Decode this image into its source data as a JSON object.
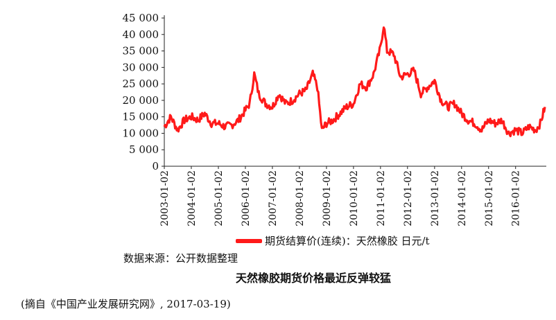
{
  "chart_data": {
    "type": "line",
    "title": "",
    "xlabel": "",
    "ylabel": "",
    "ylim": [
      0,
      45000
    ],
    "y_ticks": [
      "0",
      "5 000",
      "10 000",
      "15 000",
      "20 000",
      "25 000",
      "30 000",
      "35 000",
      "40 000",
      "45 000"
    ],
    "x_ticks": [
      "2003-01-02",
      "2004-01-02",
      "2005-01-02",
      "2006-01-02",
      "2007-01-02",
      "2008-01-02",
      "2009-01-02",
      "2010-01-02",
      "2011-01-02",
      "2012-01-02",
      "2013-01-02",
      "2014-01-02",
      "2015-01-02",
      "2016-01-02"
    ],
    "grid": false,
    "legend_position": "bottom",
    "series": [
      {
        "name": "期货结算价(连续)：天然橡胶",
        "unit": "日元/t",
        "color": "#ff1a1a",
        "x": [
          "2003-01-02",
          "2003-04-01",
          "2003-07-01",
          "2003-10-01",
          "2004-01-02",
          "2004-04-01",
          "2004-07-01",
          "2004-10-01",
          "2005-01-02",
          "2005-04-01",
          "2005-07-01",
          "2005-10-01",
          "2006-01-02",
          "2006-03-01",
          "2006-05-01",
          "2006-07-01",
          "2006-10-01",
          "2007-01-02",
          "2007-04-01",
          "2007-07-01",
          "2007-10-01",
          "2008-01-02",
          "2008-04-01",
          "2008-07-01",
          "2008-09-01",
          "2008-11-01",
          "2009-01-02",
          "2009-04-01",
          "2009-07-01",
          "2009-10-01",
          "2010-01-02",
          "2010-04-01",
          "2010-07-01",
          "2010-10-01",
          "2011-01-02",
          "2011-02-15",
          "2011-04-01",
          "2011-07-01",
          "2011-10-01",
          "2012-01-02",
          "2012-04-01",
          "2012-07-01",
          "2012-10-01",
          "2013-01-02",
          "2013-04-01",
          "2013-07-01",
          "2013-10-01",
          "2014-01-02",
          "2014-04-01",
          "2014-07-01",
          "2014-10-01",
          "2015-01-02",
          "2015-04-01",
          "2015-07-01",
          "2015-10-01",
          "2016-01-02",
          "2016-04-01",
          "2016-07-01",
          "2016-10-01",
          "2016-12-01",
          "2017-02-01"
        ],
        "values": [
          12000,
          15000,
          11000,
          14000,
          15000,
          14000,
          16000,
          13000,
          13000,
          12000,
          12500,
          14000,
          17000,
          19000,
          28000,
          22000,
          19000,
          18000,
          22000,
          19000,
          20000,
          22000,
          23000,
          28000,
          24000,
          11000,
          13000,
          14000,
          16000,
          18000,
          19000,
          25000,
          24000,
          28000,
          36000,
          43000,
          35000,
          34000,
          27000,
          28000,
          29000,
          22000,
          24000,
          26000,
          20000,
          18000,
          19000,
          16000,
          14000,
          13000,
          11000,
          14000,
          13000,
          14000,
          10000,
          11000,
          10000,
          12000,
          11000,
          13000,
          18000
        ]
      }
    ]
  },
  "legend": {
    "label": "期货结算价(连续)：天然橡胶  日元/t"
  },
  "source_text": "数据来源：公开数据整理",
  "caption": "天然橡胶期货价格最近反弹较猛",
  "footnote": "(摘自《中国产业发展研究网》, 2017-03-19)"
}
